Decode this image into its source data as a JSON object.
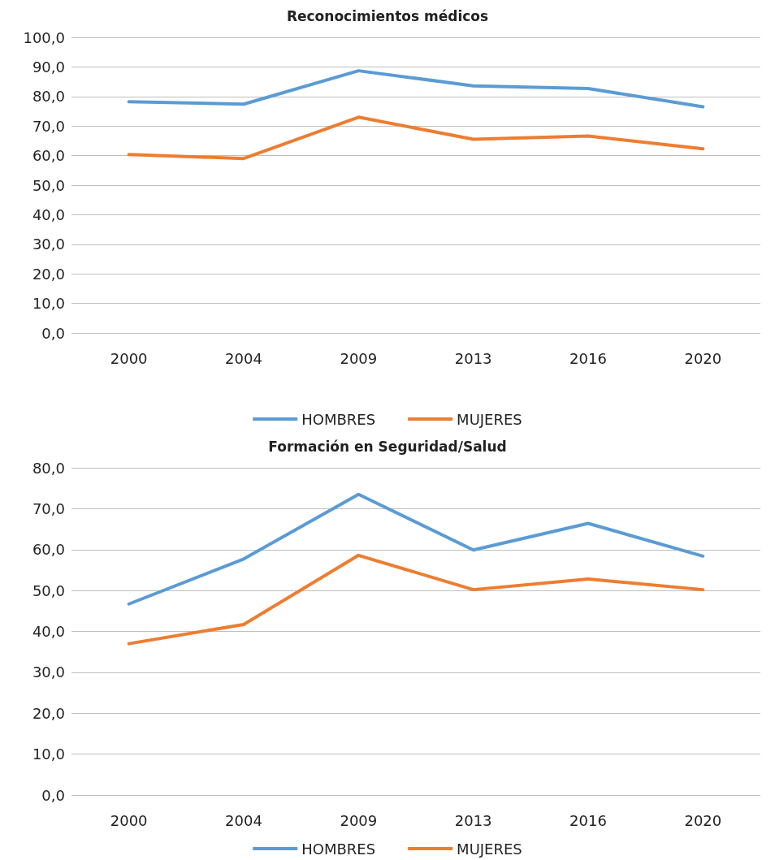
{
  "chart_data": [
    {
      "type": "line",
      "title": "Reconocimientos médicos",
      "categories": [
        "2000",
        "2004",
        "2009",
        "2013",
        "2016",
        "2020"
      ],
      "series": [
        {
          "name": "HOMBRES",
          "color": "#5b9bd5",
          "values": [
            78.2,
            77.4,
            88.7,
            83.6,
            82.7,
            76.5
          ]
        },
        {
          "name": "MUJERES",
          "color": "#ed7d31",
          "values": [
            60.4,
            59.0,
            73.0,
            65.5,
            66.6,
            62.3
          ]
        }
      ],
      "ylim": [
        0,
        100
      ],
      "yticks": [
        {
          "value": 0,
          "label": "0,0"
        },
        {
          "value": 10,
          "label": "10,0"
        },
        {
          "value": 20,
          "label": "20,0"
        },
        {
          "value": 30,
          "label": "30,0"
        },
        {
          "value": 40,
          "label": "40,0"
        },
        {
          "value": 50,
          "label": "50,0"
        },
        {
          "value": 60,
          "label": "60,0"
        },
        {
          "value": 70,
          "label": "70,0"
        },
        {
          "value": 80,
          "label": "80,0"
        },
        {
          "value": 90,
          "label": "90,0"
        },
        {
          "value": 100,
          "label": "100,0"
        }
      ],
      "grid": "y",
      "legend": "bottom",
      "marker": "none",
      "line_style": "solid"
    },
    {
      "type": "line",
      "title": "Formación en Seguridad/Salud",
      "categories": [
        "2000",
        "2004",
        "2009",
        "2013",
        "2016",
        "2020"
      ],
      "series": [
        {
          "name": "HOMBRES",
          "color": "#5b9bd5",
          "values": [
            46.7,
            57.7,
            73.5,
            59.9,
            66.4,
            58.4
          ]
        },
        {
          "name": "MUJERES",
          "color": "#ed7d31",
          "values": [
            37.0,
            41.7,
            58.6,
            50.2,
            52.8,
            50.2
          ]
        }
      ],
      "ylim": [
        0,
        80
      ],
      "yticks": [
        {
          "value": 0,
          "label": "0,0"
        },
        {
          "value": 10,
          "label": "10,0"
        },
        {
          "value": 20,
          "label": "20,0"
        },
        {
          "value": 30,
          "label": "30,0"
        },
        {
          "value": 40,
          "label": "40,0"
        },
        {
          "value": 50,
          "label": "50,0"
        },
        {
          "value": 60,
          "label": "60,0"
        },
        {
          "value": 70,
          "label": "70,0"
        },
        {
          "value": 80,
          "label": "80,0"
        }
      ],
      "grid": "y",
      "legend": "bottom",
      "marker": "none",
      "line_style": "solid"
    }
  ]
}
